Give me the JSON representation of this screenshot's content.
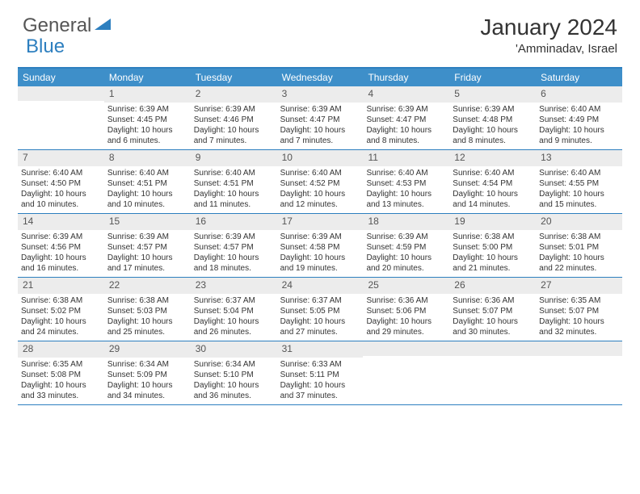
{
  "logo": {
    "text1": "General",
    "text2": "Blue",
    "color1": "#555555",
    "color2": "#2d7fbf"
  },
  "title": "January 2024",
  "location": "'Amminadav, Israel",
  "colors": {
    "header_bg": "#3e8fc9",
    "border": "#2d7fbf",
    "daynum_bg": "#ececec",
    "text": "#333333"
  },
  "weekdays": [
    "Sunday",
    "Monday",
    "Tuesday",
    "Wednesday",
    "Thursday",
    "Friday",
    "Saturday"
  ],
  "start_offset": 1,
  "days": [
    {
      "n": 1,
      "sr": "6:39 AM",
      "ss": "4:45 PM",
      "dl": "10 hours and 6 minutes."
    },
    {
      "n": 2,
      "sr": "6:39 AM",
      "ss": "4:46 PM",
      "dl": "10 hours and 7 minutes."
    },
    {
      "n": 3,
      "sr": "6:39 AM",
      "ss": "4:47 PM",
      "dl": "10 hours and 7 minutes."
    },
    {
      "n": 4,
      "sr": "6:39 AM",
      "ss": "4:47 PM",
      "dl": "10 hours and 8 minutes."
    },
    {
      "n": 5,
      "sr": "6:39 AM",
      "ss": "4:48 PM",
      "dl": "10 hours and 8 minutes."
    },
    {
      "n": 6,
      "sr": "6:40 AM",
      "ss": "4:49 PM",
      "dl": "10 hours and 9 minutes."
    },
    {
      "n": 7,
      "sr": "6:40 AM",
      "ss": "4:50 PM",
      "dl": "10 hours and 10 minutes."
    },
    {
      "n": 8,
      "sr": "6:40 AM",
      "ss": "4:51 PM",
      "dl": "10 hours and 10 minutes."
    },
    {
      "n": 9,
      "sr": "6:40 AM",
      "ss": "4:51 PM",
      "dl": "10 hours and 11 minutes."
    },
    {
      "n": 10,
      "sr": "6:40 AM",
      "ss": "4:52 PM",
      "dl": "10 hours and 12 minutes."
    },
    {
      "n": 11,
      "sr": "6:40 AM",
      "ss": "4:53 PM",
      "dl": "10 hours and 13 minutes."
    },
    {
      "n": 12,
      "sr": "6:40 AM",
      "ss": "4:54 PM",
      "dl": "10 hours and 14 minutes."
    },
    {
      "n": 13,
      "sr": "6:40 AM",
      "ss": "4:55 PM",
      "dl": "10 hours and 15 minutes."
    },
    {
      "n": 14,
      "sr": "6:39 AM",
      "ss": "4:56 PM",
      "dl": "10 hours and 16 minutes."
    },
    {
      "n": 15,
      "sr": "6:39 AM",
      "ss": "4:57 PM",
      "dl": "10 hours and 17 minutes."
    },
    {
      "n": 16,
      "sr": "6:39 AM",
      "ss": "4:57 PM",
      "dl": "10 hours and 18 minutes."
    },
    {
      "n": 17,
      "sr": "6:39 AM",
      "ss": "4:58 PM",
      "dl": "10 hours and 19 minutes."
    },
    {
      "n": 18,
      "sr": "6:39 AM",
      "ss": "4:59 PM",
      "dl": "10 hours and 20 minutes."
    },
    {
      "n": 19,
      "sr": "6:38 AM",
      "ss": "5:00 PM",
      "dl": "10 hours and 21 minutes."
    },
    {
      "n": 20,
      "sr": "6:38 AM",
      "ss": "5:01 PM",
      "dl": "10 hours and 22 minutes."
    },
    {
      "n": 21,
      "sr": "6:38 AM",
      "ss": "5:02 PM",
      "dl": "10 hours and 24 minutes."
    },
    {
      "n": 22,
      "sr": "6:38 AM",
      "ss": "5:03 PM",
      "dl": "10 hours and 25 minutes."
    },
    {
      "n": 23,
      "sr": "6:37 AM",
      "ss": "5:04 PM",
      "dl": "10 hours and 26 minutes."
    },
    {
      "n": 24,
      "sr": "6:37 AM",
      "ss": "5:05 PM",
      "dl": "10 hours and 27 minutes."
    },
    {
      "n": 25,
      "sr": "6:36 AM",
      "ss": "5:06 PM",
      "dl": "10 hours and 29 minutes."
    },
    {
      "n": 26,
      "sr": "6:36 AM",
      "ss": "5:07 PM",
      "dl": "10 hours and 30 minutes."
    },
    {
      "n": 27,
      "sr": "6:35 AM",
      "ss": "5:07 PM",
      "dl": "10 hours and 32 minutes."
    },
    {
      "n": 28,
      "sr": "6:35 AM",
      "ss": "5:08 PM",
      "dl": "10 hours and 33 minutes."
    },
    {
      "n": 29,
      "sr": "6:34 AM",
      "ss": "5:09 PM",
      "dl": "10 hours and 34 minutes."
    },
    {
      "n": 30,
      "sr": "6:34 AM",
      "ss": "5:10 PM",
      "dl": "10 hours and 36 minutes."
    },
    {
      "n": 31,
      "sr": "6:33 AM",
      "ss": "5:11 PM",
      "dl": "10 hours and 37 minutes."
    }
  ],
  "labels": {
    "sunrise": "Sunrise:",
    "sunset": "Sunset:",
    "daylight": "Daylight:"
  }
}
